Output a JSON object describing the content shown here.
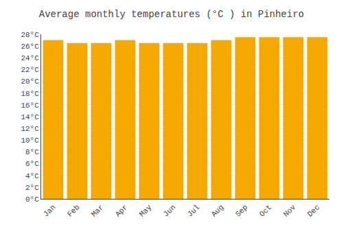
{
  "chart_data": {
    "type": "bar",
    "title": "Average monthly temperatures (°C ) in Pinheiro",
    "categories": [
      "Jan",
      "Feb",
      "Mar",
      "Apr",
      "May",
      "Jun",
      "Jul",
      "Aug",
      "Sep",
      "Oct",
      "Nov",
      "Dec"
    ],
    "values": [
      27.0,
      26.5,
      26.5,
      27.0,
      26.5,
      26.5,
      26.5,
      27.0,
      27.5,
      27.5,
      27.5,
      27.5
    ],
    "color": "#F5A800",
    "ylim": [
      0,
      28
    ],
    "yticks": [
      {
        "value": 0,
        "label": "0°C"
      },
      {
        "value": 2,
        "label": "2°C"
      },
      {
        "value": 4,
        "label": "4°C"
      },
      {
        "value": 6,
        "label": "6°C"
      },
      {
        "value": 8,
        "label": "8°C"
      },
      {
        "value": 10,
        "label": "10°C"
      },
      {
        "value": 12,
        "label": "12°C"
      },
      {
        "value": 14,
        "label": "14°C"
      },
      {
        "value": 16,
        "label": "16°C"
      },
      {
        "value": 18,
        "label": "18°C"
      },
      {
        "value": 20,
        "label": "20°C"
      },
      {
        "value": 22,
        "label": "22°C"
      },
      {
        "value": 24,
        "label": "24°C"
      },
      {
        "value": 26,
        "label": "26°C"
      },
      {
        "value": 28,
        "label": "28°C"
      }
    ],
    "grid": true
  }
}
